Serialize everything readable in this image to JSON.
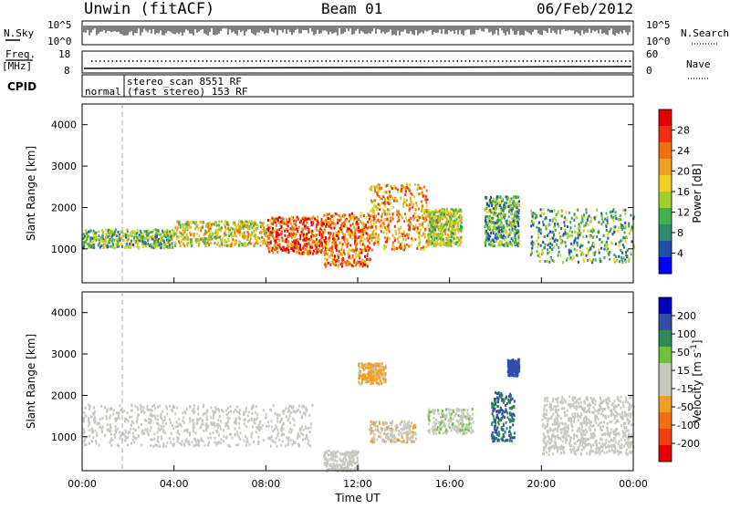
{
  "header": {
    "station": "Unwin (fitACF)",
    "beam": "Beam 01",
    "date": "06/Feb/2012"
  },
  "top_panels": {
    "nsky_label": "N.Sky",
    "nsky_ticks": [
      "10^5",
      "10^0"
    ],
    "nsearch_label": "N.Search",
    "nsearch_ticks": [
      "10^5",
      "10^0"
    ],
    "freq_label_1": "Freq.",
    "freq_label_2": "[MHz]",
    "freq_ticks": [
      "18",
      "8"
    ],
    "nave_label": "Nave",
    "nave_ticks": [
      "60",
      "0"
    ],
    "cpid_label": "CPID",
    "cpid_line1": "stereo_scan 8551 RF",
    "cpid_line2": "(fast stereo) 153 RF",
    "cpid_mode": "normal"
  },
  "colors": {
    "power_scale": [
      "#0000ff",
      "#1f4fa8",
      "#2f8a6e",
      "#3fb04a",
      "#a0d030",
      "#f0d020",
      "#f0a020",
      "#f07010",
      "#f03010",
      "#e00000"
    ],
    "velocity_scale": [
      "#e00000",
      "#f04010",
      "#f07010",
      "#f0a020",
      "#c8c8c0",
      "#c8c8c0",
      "#70c040",
      "#2f8a4e",
      "#2f4fa8",
      "#0000c0"
    ],
    "ground_scatter": "#c8c8c0"
  },
  "chart_data": [
    {
      "type": "heatmap",
      "panel": "power",
      "xlabel": "",
      "ylabel": "Slant Range [km]",
      "ylim": [
        180,
        4500
      ],
      "y_ticks": [
        "4000",
        "3000",
        "2000",
        "1000"
      ],
      "colorbar_label": "Power [dB]",
      "colorbar_ticks": [
        "28",
        "24",
        "20",
        "16",
        "12",
        "8",
        "4"
      ],
      "clim": [
        0,
        30
      ],
      "echo_bands": [
        {
          "t_start": 0.0,
          "t_end": 4.0,
          "range_low": 1050,
          "range_high": 1500,
          "power": 12
        },
        {
          "t_start": 4.0,
          "t_end": 8.0,
          "range_low": 1100,
          "range_high": 1700,
          "power": 16
        },
        {
          "t_start": 8.0,
          "t_end": 10.5,
          "range_low": 900,
          "range_high": 1800,
          "power": 24
        },
        {
          "t_start": 10.5,
          "t_end": 12.5,
          "range_low": 600,
          "range_high": 1900,
          "power": 22
        },
        {
          "t_start": 12.5,
          "t_end": 15.0,
          "range_low": 1000,
          "range_high": 2600,
          "power": 20
        },
        {
          "t_start": 15.0,
          "t_end": 16.5,
          "range_low": 1100,
          "range_high": 2000,
          "power": 14
        },
        {
          "t_start": 17.5,
          "t_end": 19.0,
          "range_low": 1100,
          "range_high": 2300,
          "power": 10
        },
        {
          "t_start": 19.5,
          "t_end": 24.0,
          "range_low": 700,
          "range_high": 2000,
          "power": 10
        }
      ]
    },
    {
      "type": "heatmap",
      "panel": "velocity",
      "xlabel": "Time UT",
      "ylabel": "Slant Range [km]",
      "ylim": [
        180,
        4500
      ],
      "y_ticks": [
        "4000",
        "3000",
        "2000",
        "1000"
      ],
      "x_ticks": [
        "00:00",
        "04:00",
        "08:00",
        "12:00",
        "16:00",
        "20:00",
        "00:00"
      ],
      "xlim": [
        0,
        24
      ],
      "colorbar_label": "Velocity [m s-1]",
      "colorbar_ticks": [
        "200",
        "100",
        "50",
        "15",
        "-15",
        "-50",
        "-100",
        "-200"
      ],
      "clim": [
        -250,
        250
      ],
      "features": [
        {
          "t_start": 0.0,
          "t_end": 10.0,
          "range_low": 800,
          "range_high": 1800,
          "velocity": 0,
          "ground_scatter": true
        },
        {
          "t_start": 12.0,
          "t_end": 13.2,
          "range_low": 2300,
          "range_high": 2800,
          "velocity": -60
        },
        {
          "t_start": 12.5,
          "t_end": 14.5,
          "range_low": 900,
          "range_high": 1400,
          "velocity": -40
        },
        {
          "t_start": 10.5,
          "t_end": 12.0,
          "range_low": 200,
          "range_high": 700,
          "velocity": -30
        },
        {
          "t_start": 17.8,
          "t_end": 18.8,
          "range_low": 900,
          "range_high": 2100,
          "velocity": 150
        },
        {
          "t_start": 18.5,
          "t_end": 19.0,
          "range_low": 2500,
          "range_high": 2900,
          "velocity": 180
        },
        {
          "t_start": 15.0,
          "t_end": 17.0,
          "range_low": 1100,
          "range_high": 1700,
          "velocity": 40
        },
        {
          "t_start": 20.0,
          "t_end": 24.0,
          "range_low": 600,
          "range_high": 2000,
          "velocity": 0,
          "ground_scatter": true
        }
      ]
    }
  ]
}
